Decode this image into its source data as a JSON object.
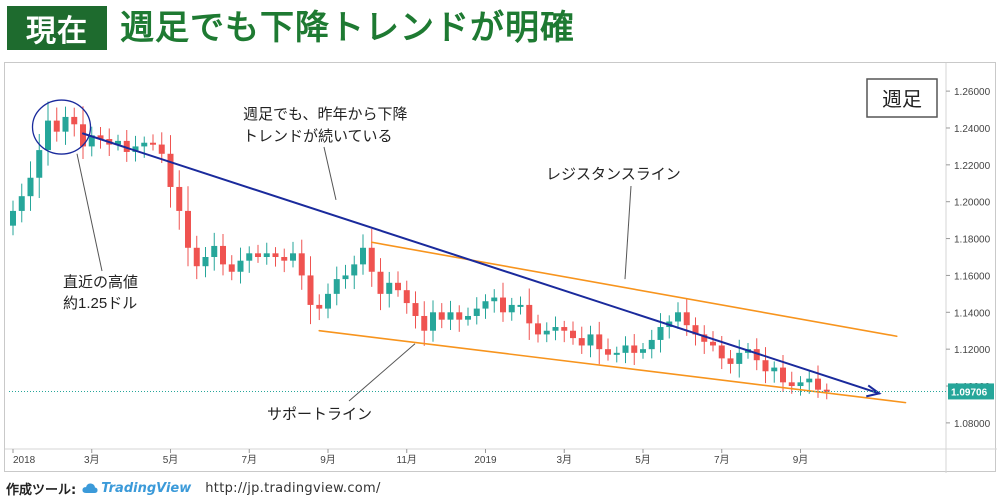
{
  "header": {
    "badge": "現在",
    "headline": "週足でも下降トレンドが明確"
  },
  "footer": {
    "tool_label": "作成ツール:",
    "brand": "TradingView",
    "url": "http://jp.tradingview.com/"
  },
  "colors": {
    "bull": "#26a69a",
    "bear": "#ef5350",
    "trendline": "#1a2a9c",
    "channel": "#f7941d",
    "header_bg": "#1e6b2e",
    "headline": "#1e7a32",
    "price_tag": "#26a69a",
    "callout": "#1a2a9c"
  },
  "chart_data": {
    "type": "candlestick",
    "timeframe_label": "週足",
    "last_price": "1.09706",
    "ylim": [
      1.068,
      1.272
    ],
    "yticks": [
      "1.26000",
      "1.24000",
      "1.22000",
      "1.20000",
      "1.18000",
      "1.16000",
      "1.14000",
      "1.12000",
      "1.10000",
      "1.08000"
    ],
    "xticks": [
      {
        "label": "2018",
        "i": 0
      },
      {
        "label": "3月",
        "i": 9
      },
      {
        "label": "5月",
        "i": 18
      },
      {
        "label": "7月",
        "i": 27
      },
      {
        "label": "9月",
        "i": 36
      },
      {
        "label": "11月",
        "i": 45
      },
      {
        "label": "2019",
        "i": 54
      },
      {
        "label": "3月",
        "i": 63
      },
      {
        "label": "5月",
        "i": 72
      },
      {
        "label": "7月",
        "i": 81
      },
      {
        "label": "9月",
        "i": 90
      }
    ],
    "closes": [
      1.195,
      1.203,
      1.213,
      1.228,
      1.244,
      1.238,
      1.246,
      1.242,
      1.23,
      1.236,
      1.234,
      1.231,
      1.233,
      1.227,
      1.23,
      1.232,
      1.231,
      1.226,
      1.208,
      1.195,
      1.175,
      1.165,
      1.17,
      1.176,
      1.166,
      1.162,
      1.168,
      1.172,
      1.17,
      1.172,
      1.17,
      1.168,
      1.172,
      1.16,
      1.144,
      1.142,
      1.15,
      1.158,
      1.16,
      1.166,
      1.175,
      1.162,
      1.15,
      1.156,
      1.152,
      1.145,
      1.138,
      1.13,
      1.14,
      1.136,
      1.14,
      1.136,
      1.138,
      1.142,
      1.146,
      1.148,
      1.14,
      1.144,
      1.144,
      1.134,
      1.128,
      1.13,
      1.132,
      1.13,
      1.126,
      1.122,
      1.128,
      1.12,
      1.117,
      1.118,
      1.122,
      1.118,
      1.12,
      1.125,
      1.132,
      1.135,
      1.14,
      1.133,
      1.128,
      1.124,
      1.122,
      1.115,
      1.112,
      1.118,
      1.12,
      1.114,
      1.108,
      1.11,
      1.102,
      1.1,
      1.102,
      1.104,
      1.098,
      1.097
    ],
    "trendline": {
      "from": {
        "i": 8,
        "price": 1.237
      },
      "to": {
        "i": 99,
        "price": 1.096
      }
    },
    "resistance_line": {
      "from": {
        "i": 41,
        "price": 1.178
      },
      "to": {
        "i": 101,
        "price": 1.127
      }
    },
    "support_line": {
      "from": {
        "i": 35,
        "price": 1.13
      },
      "to": {
        "i": 102,
        "price": 1.091
      }
    },
    "annotations": [
      {
        "id": "downtrend",
        "lines": [
          "週足でも、昨年から下降",
          "トレンドが続いている"
        ]
      },
      {
        "id": "resistance",
        "lines": [
          "レジスタンスライン"
        ]
      },
      {
        "id": "support",
        "lines": [
          "サポートライン"
        ]
      },
      {
        "id": "recent-high",
        "lines": [
          "直近の高値",
          "約1.25ドル"
        ]
      }
    ]
  }
}
